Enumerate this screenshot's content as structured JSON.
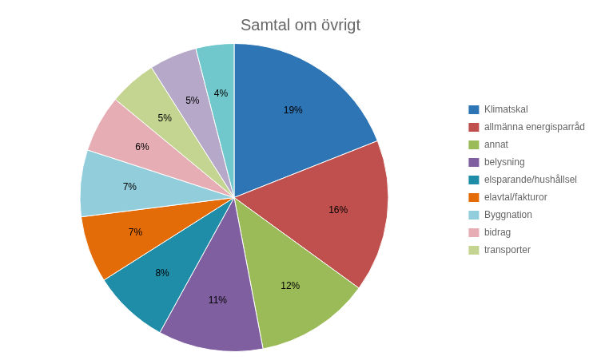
{
  "chart_data": {
    "type": "pie",
    "title": "Samtal om övrigt",
    "categories": [
      "Klimatskal",
      "allmänna energisparråd",
      "annat",
      "belysning",
      "elsparande/hushållsel",
      "elavtal/fakturor",
      "Byggnation",
      "bidrag",
      "transporter",
      null,
      null
    ],
    "values": [
      19,
      16,
      12,
      11,
      8,
      7,
      7,
      6,
      5,
      5,
      4
    ],
    "value_labels": [
      "19%",
      "16%",
      "12%",
      "11%",
      "8%",
      "7%",
      "7%",
      "6%",
      "5%",
      "5%",
      "4%"
    ],
    "colors": [
      "#2E75B6",
      "#C0504D",
      "#9BBB59",
      "#7F5FA0",
      "#1F8CA8",
      "#E36C09",
      "#92CDDC",
      "#E6ADB4",
      "#C3D590",
      "#B5A8C8",
      "#70C7CC"
    ],
    "data_labels": true,
    "legend": "right"
  }
}
